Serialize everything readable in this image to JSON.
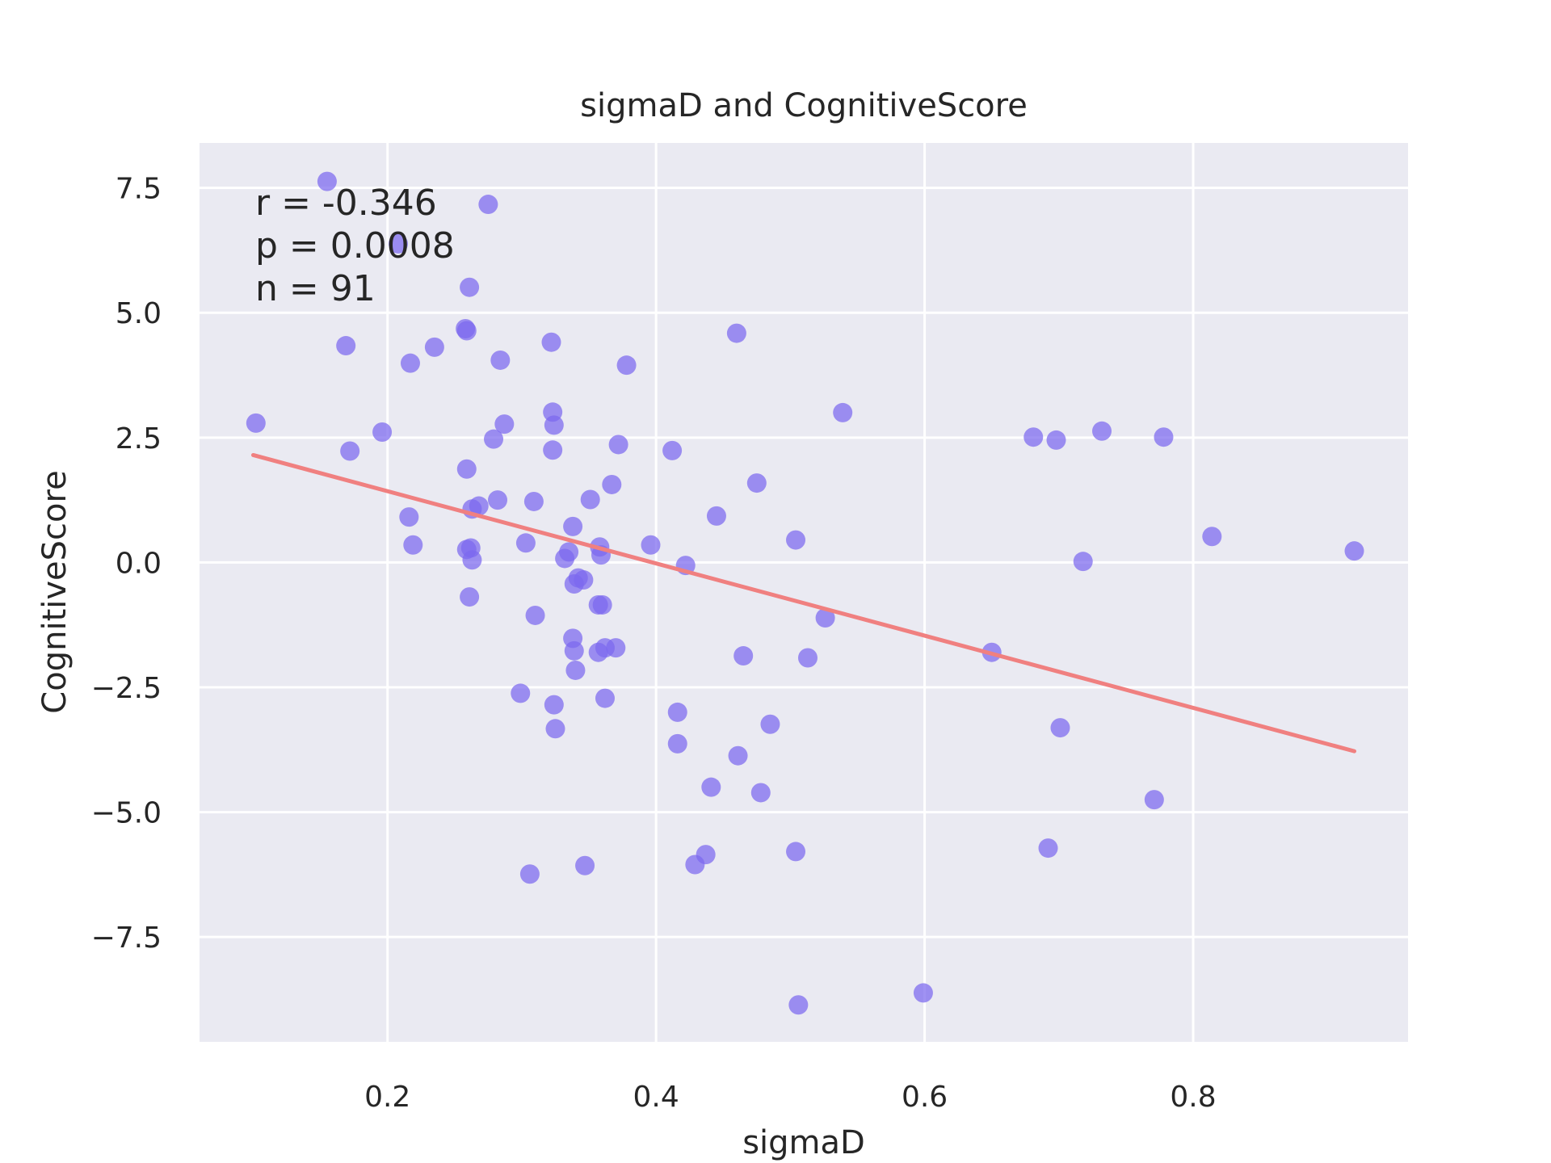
{
  "chart_data": {
    "type": "scatter",
    "title": "sigmaD and CognitiveScore",
    "xlabel": "sigmaD",
    "ylabel": "CognitiveScore",
    "xlim": [
      0.06,
      0.96
    ],
    "ylim": [
      -9.6,
      8.4
    ],
    "xticks": [
      0.2,
      0.4,
      0.6,
      0.8
    ],
    "xtick_labels": [
      "0.2",
      "0.4",
      "0.6",
      "0.8"
    ],
    "yticks": [
      -7.5,
      -5.0,
      -2.5,
      0.0,
      2.5,
      5.0,
      7.5
    ],
    "ytick_labels": [
      "−7.5",
      "−5.0",
      "−2.5",
      "0.0",
      "2.5",
      "5.0",
      "7.5"
    ],
    "grid": true,
    "stats": {
      "r": "r = -0.346",
      "p": "p = 0.0008",
      "n": "n = 91"
    },
    "regression_line": {
      "x": [
        0.1,
        0.92
      ],
      "y": [
        2.15,
        -3.78
      ],
      "color": "#f08080"
    },
    "colors": {
      "background": "#eaeaf2",
      "points": "#7b68ee",
      "regression": "#f08080"
    },
    "points": [
      [
        0.155,
        7.63
      ],
      [
        0.275,
        7.17
      ],
      [
        0.208,
        6.38
      ],
      [
        0.261,
        5.51
      ],
      [
        0.258,
        4.68
      ],
      [
        0.259,
        4.64
      ],
      [
        0.169,
        4.34
      ],
      [
        0.235,
        4.31
      ],
      [
        0.217,
        3.99
      ],
      [
        0.284,
        4.05
      ],
      [
        0.322,
        4.41
      ],
      [
        0.46,
        4.59
      ],
      [
        0.378,
        3.95
      ],
      [
        0.539,
        3.0
      ],
      [
        0.102,
        2.79
      ],
      [
        0.196,
        2.61
      ],
      [
        0.172,
        2.23
      ],
      [
        0.287,
        2.77
      ],
      [
        0.279,
        2.47
      ],
      [
        0.323,
        3.01
      ],
      [
        0.324,
        2.75
      ],
      [
        0.323,
        2.25
      ],
      [
        0.372,
        2.36
      ],
      [
        0.412,
        2.24
      ],
      [
        0.681,
        2.51
      ],
      [
        0.698,
        2.45
      ],
      [
        0.732,
        2.63
      ],
      [
        0.778,
        2.51
      ],
      [
        0.259,
        1.87
      ],
      [
        0.367,
        1.56
      ],
      [
        0.475,
        1.59
      ],
      [
        0.282,
        1.25
      ],
      [
        0.309,
        1.22
      ],
      [
        0.351,
        1.26
      ],
      [
        0.268,
        1.13
      ],
      [
        0.263,
        1.07
      ],
      [
        0.216,
        0.91
      ],
      [
        0.445,
        0.93
      ],
      [
        0.338,
        0.72
      ],
      [
        0.814,
        0.52
      ],
      [
        0.504,
        0.45
      ],
      [
        0.219,
        0.35
      ],
      [
        0.303,
        0.39
      ],
      [
        0.396,
        0.35
      ],
      [
        0.259,
        0.26
      ],
      [
        0.262,
        0.29
      ],
      [
        0.335,
        0.21
      ],
      [
        0.358,
        0.31
      ],
      [
        0.359,
        0.15
      ],
      [
        0.332,
        0.08
      ],
      [
        0.263,
        0.05
      ],
      [
        0.718,
        0.02
      ],
      [
        0.92,
        0.23
      ],
      [
        0.422,
        -0.06
      ],
      [
        0.342,
        -0.31
      ],
      [
        0.346,
        -0.35
      ],
      [
        0.339,
        -0.43
      ],
      [
        0.261,
        -0.69
      ],
      [
        0.357,
        -0.85
      ],
      [
        0.36,
        -0.85
      ],
      [
        0.31,
        -1.06
      ],
      [
        0.526,
        -1.11
      ],
      [
        0.338,
        -1.52
      ],
      [
        0.339,
        -1.77
      ],
      [
        0.357,
        -1.8
      ],
      [
        0.362,
        -1.71
      ],
      [
        0.37,
        -1.71
      ],
      [
        0.465,
        -1.87
      ],
      [
        0.513,
        -1.91
      ],
      [
        0.65,
        -1.8
      ],
      [
        0.34,
        -2.16
      ],
      [
        0.299,
        -2.62
      ],
      [
        0.324,
        -2.85
      ],
      [
        0.362,
        -2.72
      ],
      [
        0.416,
        -3.0
      ],
      [
        0.485,
        -3.24
      ],
      [
        0.701,
        -3.31
      ],
      [
        0.325,
        -3.33
      ],
      [
        0.416,
        -3.63
      ],
      [
        0.461,
        -3.87
      ],
      [
        0.441,
        -4.5
      ],
      [
        0.478,
        -4.61
      ],
      [
        0.771,
        -4.75
      ],
      [
        0.692,
        -5.72
      ],
      [
        0.504,
        -5.79
      ],
      [
        0.437,
        -5.85
      ],
      [
        0.429,
        -6.05
      ],
      [
        0.347,
        -6.07
      ],
      [
        0.306,
        -6.24
      ],
      [
        0.599,
        -8.62
      ],
      [
        0.506,
        -8.86
      ]
    ]
  }
}
